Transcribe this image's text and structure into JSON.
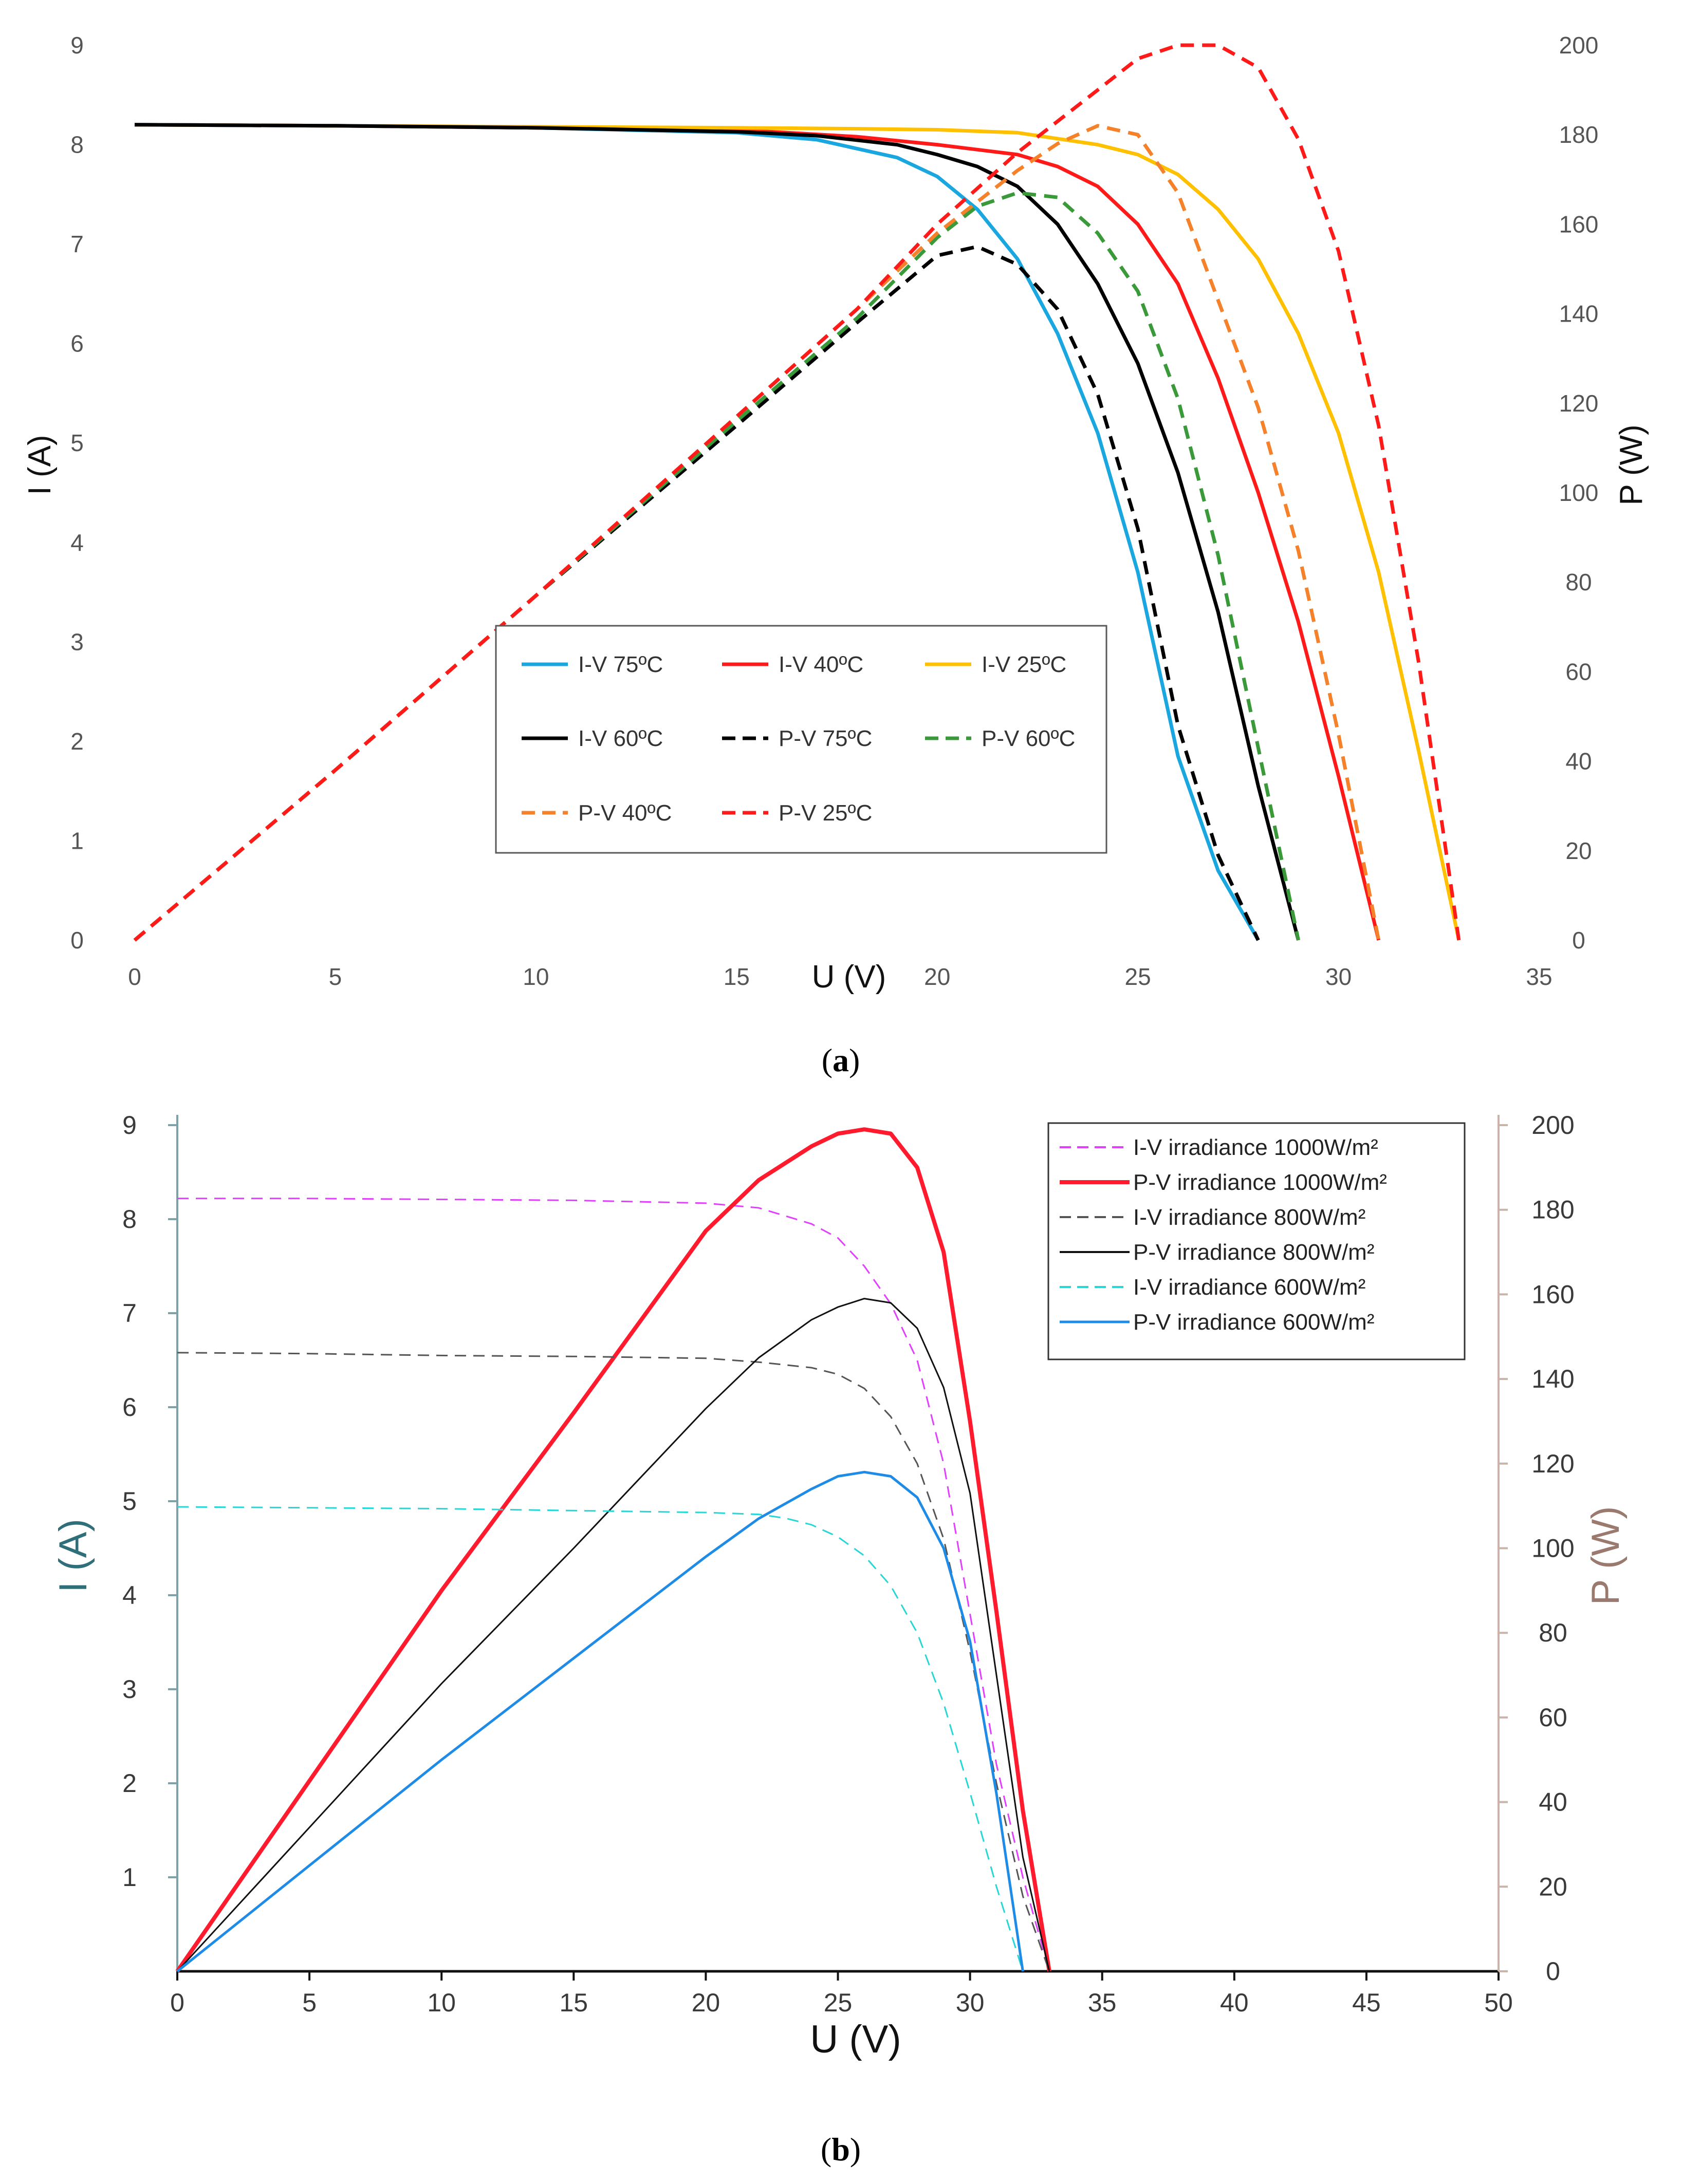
{
  "chart_data": [
    {
      "type": "line",
      "panel": "a",
      "caption_open": "(",
      "caption_letter": "a",
      "caption_close": ")",
      "xlabel": "U (V)",
      "ylabel": "I (A)",
      "y2label": "P (W)",
      "xlim": [
        0,
        35
      ],
      "ylim": [
        0,
        9
      ],
      "y2lim": [
        0,
        200
      ],
      "x_ticks": [
        "0",
        "5",
        "10",
        "15",
        "20",
        "25",
        "30",
        "35"
      ],
      "y_ticks": [
        "0",
        "1",
        "2",
        "3",
        "4",
        "5",
        "6",
        "7",
        "8",
        "9"
      ],
      "y2_ticks": [
        "0",
        "20",
        "40",
        "60",
        "80",
        "100",
        "120",
        "140",
        "160",
        "180",
        "200"
      ],
      "grid": false,
      "legend_position": "bottom-center",
      "legend_order": [
        0,
        1,
        2,
        3,
        4,
        5,
        6,
        7
      ],
      "series": [
        {
          "name": "I-V 75ºC",
          "axis": "left",
          "color": "#1aa7e0",
          "dash": "solid",
          "x": [
            0,
            5,
            10,
            15,
            17,
            19,
            20,
            21,
            22,
            23,
            24,
            25,
            26,
            27,
            28
          ],
          "y": [
            8.2,
            8.19,
            8.17,
            8.12,
            8.05,
            7.87,
            7.68,
            7.35,
            6.85,
            6.1,
            5.1,
            3.7,
            1.85,
            0.7,
            0
          ]
        },
        {
          "name": "I-V 40ºC",
          "axis": "left",
          "color": "#ff1a1a",
          "dash": "solid",
          "x": [
            0,
            5,
            10,
            15,
            18,
            20,
            22,
            23,
            24,
            25,
            26,
            27,
            28,
            29,
            30,
            31
          ],
          "y": [
            8.2,
            8.19,
            8.17,
            8.15,
            8.08,
            8.0,
            7.9,
            7.78,
            7.58,
            7.2,
            6.6,
            5.65,
            4.5,
            3.2,
            1.65,
            0
          ]
        },
        {
          "name": "I-V 25ºC",
          "axis": "left",
          "color": "#ffc000",
          "dash": "solid",
          "x": [
            0,
            5,
            10,
            15,
            18,
            20,
            22,
            24,
            25,
            26,
            27,
            28,
            29,
            30,
            31,
            32,
            33
          ],
          "y": [
            8.2,
            8.19,
            8.18,
            8.17,
            8.16,
            8.15,
            8.12,
            8.0,
            7.9,
            7.7,
            7.35,
            6.85,
            6.1,
            5.1,
            3.7,
            1.9,
            0
          ]
        },
        {
          "name": "I-V 60ºC",
          "axis": "left",
          "color": "#000000",
          "dash": "solid",
          "x": [
            0,
            5,
            10,
            15,
            17,
            19,
            20,
            21,
            22,
            23,
            24,
            25,
            26,
            27,
            28,
            29
          ],
          "y": [
            8.2,
            8.19,
            8.17,
            8.13,
            8.09,
            8.0,
            7.9,
            7.78,
            7.58,
            7.2,
            6.6,
            5.8,
            4.7,
            3.3,
            1.55,
            0
          ]
        },
        {
          "name": "P-V 75ºC",
          "axis": "right",
          "color": "#000000",
          "dash": "dashed",
          "x": [
            0,
            5,
            10,
            15,
            18,
            20,
            21,
            22,
            23,
            24,
            25,
            26,
            27,
            28
          ],
          "y": [
            0,
            38,
            77,
            115,
            138,
            153,
            155,
            151,
            141,
            122,
            92,
            48,
            19,
            0
          ]
        },
        {
          "name": "P-V 60ºC",
          "axis": "right",
          "color": "#3a9a3a",
          "dash": "dashed",
          "x": [
            0,
            5,
            10,
            15,
            18,
            20,
            21,
            22,
            23,
            24,
            25,
            26,
            27,
            28,
            29
          ],
          "y": [
            0,
            38,
            77,
            116,
            139,
            157,
            164,
            167,
            166,
            158,
            145,
            121,
            86,
            43,
            0
          ]
        },
        {
          "name": "P-V 40ºC",
          "axis": "right",
          "color": "#f5822a",
          "dash": "dashed",
          "x": [
            0,
            5,
            10,
            15,
            18,
            20,
            22,
            23,
            24,
            25,
            26,
            27,
            28,
            29,
            30,
            31
          ],
          "y": [
            0,
            38,
            77,
            117,
            141,
            158,
            172,
            178,
            182,
            180,
            167,
            143,
            119,
            87,
            46,
            0
          ]
        },
        {
          "name": "P-V 25ºC",
          "axis": "right",
          "color": "#ff1a1a",
          "dash": "dashed",
          "x": [
            0,
            5,
            10,
            15,
            18,
            20,
            22,
            24,
            25,
            26,
            27,
            28,
            29,
            30,
            31,
            32,
            33
          ],
          "y": [
            0,
            38,
            77,
            117,
            141,
            160,
            176,
            190,
            197,
            200,
            200,
            195,
            179,
            154,
            115,
            62,
            0
          ]
        }
      ]
    },
    {
      "type": "line",
      "panel": "b",
      "caption_open": "(",
      "caption_letter": "b",
      "caption_close": ")",
      "xlabel": "U (V)",
      "ylabel": "I (A)",
      "y2label": "P (W)",
      "xlim": [
        0,
        50
      ],
      "ylim": [
        0,
        9
      ],
      "y2lim": [
        0,
        200
      ],
      "x_ticks": [
        "0",
        "5",
        "10",
        "15",
        "20",
        "25",
        "30",
        "35",
        "40",
        "45",
        "50"
      ],
      "y_ticks": [
        "1",
        "2",
        "3",
        "4",
        "5",
        "6",
        "7",
        "8",
        "9"
      ],
      "y2_ticks": [
        "0",
        "20",
        "40",
        "60",
        "80",
        "100",
        "120",
        "140",
        "160",
        "180",
        "200"
      ],
      "grid": false,
      "legend_position": "top-right",
      "legend_order": [
        0,
        1,
        2,
        3,
        4,
        5
      ],
      "series": [
        {
          "name": "I-V  irradiance 1000W/m²",
          "axis": "left",
          "color": "#e040fb",
          "dash": "dashed",
          "width": 3,
          "x": [
            0,
            5,
            10,
            15,
            20,
            22,
            24,
            25,
            26,
            27,
            28,
            29,
            30,
            31,
            32,
            33
          ],
          "y": [
            8.22,
            8.22,
            8.21,
            8.2,
            8.17,
            8.12,
            7.95,
            7.8,
            7.5,
            7.1,
            6.5,
            5.4,
            3.8,
            2.2,
            1.0,
            0
          ]
        },
        {
          "name": "P-V irradiance 1000W/m²",
          "axis": "right",
          "color": "#ff1a2e",
          "dash": "solid",
          "width": 8,
          "x": [
            0,
            5,
            10,
            15,
            20,
            22,
            24,
            25,
            26,
            27,
            28,
            29,
            30,
            31,
            32,
            33
          ],
          "y": [
            0,
            45,
            90,
            132,
            175,
            187,
            195,
            198,
            199,
            198,
            190,
            170,
            130,
            85,
            38,
            0
          ]
        },
        {
          "name": "I-V  irradiance 800W/m²",
          "axis": "left",
          "color": "#555555",
          "dash": "dashed",
          "width": 3,
          "x": [
            0,
            5,
            10,
            15,
            20,
            22,
            24,
            25,
            26,
            27,
            28,
            29,
            30,
            31,
            32,
            33
          ],
          "y": [
            6.58,
            6.57,
            6.55,
            6.54,
            6.52,
            6.48,
            6.42,
            6.35,
            6.2,
            5.9,
            5.4,
            4.6,
            3.4,
            2.0,
            0.8,
            0
          ]
        },
        {
          "name": "P-V irradiance 800W/m²",
          "axis": "right",
          "color": "#111111",
          "dash": "solid",
          "width": 3,
          "x": [
            0,
            5,
            10,
            15,
            20,
            22,
            24,
            25,
            26,
            27,
            28,
            29,
            30,
            31,
            32,
            33
          ],
          "y": [
            0,
            34,
            68,
            100,
            133,
            145,
            154,
            157,
            159,
            158,
            152,
            138,
            113,
            70,
            27,
            0
          ]
        },
        {
          "name": "I-V  irradiance 600W/m²",
          "axis": "left",
          "color": "#28d6d6",
          "dash": "dashed",
          "width": 3,
          "x": [
            0,
            5,
            10,
            15,
            20,
            22,
            23,
            24,
            25,
            26,
            27,
            28,
            29,
            30,
            31,
            32
          ],
          "y": [
            4.94,
            4.93,
            4.92,
            4.9,
            4.88,
            4.86,
            4.82,
            4.75,
            4.62,
            4.42,
            4.1,
            3.6,
            2.85,
            1.9,
            0.9,
            0
          ]
        },
        {
          "name": "P-V irradiance 600W/m²",
          "axis": "right",
          "color": "#1e8ce6",
          "dash": "solid",
          "width": 5,
          "x": [
            0,
            5,
            10,
            15,
            20,
            22,
            24,
            25,
            26,
            27,
            28,
            29,
            30,
            31,
            32
          ],
          "y": [
            0,
            25,
            50,
            74,
            98,
            107,
            114,
            117,
            118,
            117,
            112,
            100,
            78,
            42,
            0
          ]
        }
      ]
    }
  ]
}
